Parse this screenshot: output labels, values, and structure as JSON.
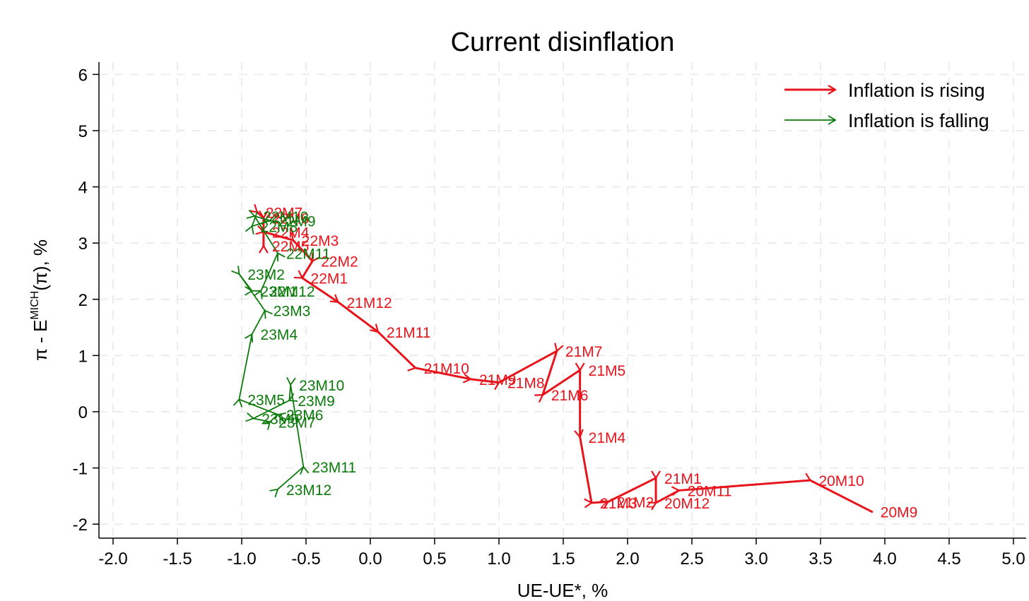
{
  "chart_data": {
    "type": "line",
    "title": "Current disinflation",
    "xlabel": "UE-UE*, %",
    "ylabel_parts": {
      "pre": "π - E",
      "sup": "MICH",
      "post": "(π), %"
    },
    "xlim": [
      -2.1,
      5.05
    ],
    "ylim": [
      -2.25,
      6.25
    ],
    "x_ticks": [
      -2.0,
      -1.5,
      -1.0,
      -0.5,
      0.0,
      0.5,
      1.0,
      1.5,
      2.0,
      2.5,
      3.0,
      3.5,
      4.0,
      4.5,
      5.0
    ],
    "x_tick_labels": [
      "-2.0",
      "-1.5",
      "-1.0",
      "-0.5",
      "0.0",
      "0.5",
      "1.0",
      "1.5",
      "2.0",
      "2.5",
      "3.0",
      "3.5",
      "4.0",
      "4.5",
      "5.0"
    ],
    "y_ticks": [
      -2,
      -1,
      0,
      1,
      2,
      3,
      4,
      5,
      6
    ],
    "y_tick_labels": [
      "-2",
      "-1",
      "0",
      "1",
      "2",
      "3",
      "4",
      "5",
      "6"
    ],
    "grid": true,
    "legend_position": "top-right",
    "legend": [
      {
        "label": "Inflation is rising",
        "color": "#e8141c"
      },
      {
        "label": "Inflation is falling",
        "color": "#0b7a0b"
      }
    ],
    "colors": {
      "rising": "#e8141c",
      "falling": "#0b7a0b"
    },
    "points": [
      {
        "label": "20M9",
        "x": 3.9,
        "y": -1.78
      },
      {
        "label": "20M10",
        "x": 3.42,
        "y": -1.22
      },
      {
        "label": "20M11",
        "x": 2.4,
        "y": -1.4
      },
      {
        "label": "20M12",
        "x": 2.22,
        "y": -1.62
      },
      {
        "label": "21M1",
        "x": 2.22,
        "y": -1.18
      },
      {
        "label": "21M2",
        "x": 1.85,
        "y": -1.6
      },
      {
        "label": "21M3",
        "x": 1.72,
        "y": -1.62
      },
      {
        "label": "21M4",
        "x": 1.63,
        "y": -0.45
      },
      {
        "label": "21M5",
        "x": 1.63,
        "y": 0.74
      },
      {
        "label": "21M6",
        "x": 1.34,
        "y": 0.3
      },
      {
        "label": "21M7",
        "x": 1.45,
        "y": 1.08
      },
      {
        "label": "21M8",
        "x": 1.0,
        "y": 0.52
      },
      {
        "label": "21M9",
        "x": 0.78,
        "y": 0.58
      },
      {
        "label": "21M10",
        "x": 0.35,
        "y": 0.78
      },
      {
        "label": "21M11",
        "x": 0.06,
        "y": 1.42
      },
      {
        "label": "21M12",
        "x": -0.25,
        "y": 1.95
      },
      {
        "label": "22M1",
        "x": -0.53,
        "y": 2.38
      },
      {
        "label": "22M2",
        "x": -0.45,
        "y": 2.68
      },
      {
        "label": "22M3",
        "x": -0.6,
        "y": 3.05
      },
      {
        "label": "22M4",
        "x": -0.83,
        "y": 3.2
      },
      {
        "label": "22M5",
        "x": -0.83,
        "y": 2.95
      },
      {
        "label": "22M6",
        "x": -0.83,
        "y": 3.45
      },
      {
        "label": "22M7",
        "x": -0.88,
        "y": 3.55
      },
      {
        "label": "22M8",
        "x": -0.92,
        "y": 3.3
      },
      {
        "label": "22M9",
        "x": -0.78,
        "y": 3.4
      },
      {
        "label": "22M10",
        "x": -0.9,
        "y": 3.48
      },
      {
        "label": "22M11",
        "x": -0.72,
        "y": 2.82
      },
      {
        "label": "22M12",
        "x": -0.85,
        "y": 2.15
      },
      {
        "label": "23M1",
        "x": -0.92,
        "y": 2.15
      },
      {
        "label": "23M2",
        "x": -1.02,
        "y": 2.45
      },
      {
        "label": "23M3",
        "x": -0.82,
        "y": 1.8
      },
      {
        "label": "23M4",
        "x": -0.92,
        "y": 1.38
      },
      {
        "label": "23M5",
        "x": -1.02,
        "y": 0.22
      },
      {
        "label": "23M6",
        "x": -0.72,
        "y": -0.05
      },
      {
        "label": "23M7",
        "x": -0.78,
        "y": -0.18
      },
      {
        "label": "23M8",
        "x": -0.91,
        "y": -0.12
      },
      {
        "label": "23M9",
        "x": -0.63,
        "y": 0.2
      },
      {
        "label": "23M10",
        "x": -0.62,
        "y": 0.48
      },
      {
        "label": "23M11",
        "x": -0.52,
        "y": -0.98
      },
      {
        "label": "23M12",
        "x": -0.72,
        "y": -1.38
      }
    ],
    "segments": [
      {
        "from": "20M9",
        "to": "20M10",
        "trend": "rising"
      },
      {
        "from": "20M10",
        "to": "20M11",
        "trend": "rising"
      },
      {
        "from": "20M11",
        "to": "20M12",
        "trend": "rising"
      },
      {
        "from": "20M12",
        "to": "21M1",
        "trend": "rising"
      },
      {
        "from": "21M1",
        "to": "21M2",
        "trend": "rising"
      },
      {
        "from": "21M2",
        "to": "21M3",
        "trend": "rising"
      },
      {
        "from": "21M3",
        "to": "21M4",
        "trend": "rising"
      },
      {
        "from": "21M4",
        "to": "21M5",
        "trend": "rising"
      },
      {
        "from": "21M5",
        "to": "21M6",
        "trend": "rising"
      },
      {
        "from": "21M6",
        "to": "21M7",
        "trend": "rising"
      },
      {
        "from": "21M7",
        "to": "21M8",
        "trend": "rising"
      },
      {
        "from": "21M8",
        "to": "21M9",
        "trend": "rising"
      },
      {
        "from": "21M9",
        "to": "21M10",
        "trend": "rising"
      },
      {
        "from": "21M10",
        "to": "21M11",
        "trend": "rising"
      },
      {
        "from": "21M11",
        "to": "21M12",
        "trend": "rising"
      },
      {
        "from": "21M12",
        "to": "22M1",
        "trend": "rising"
      },
      {
        "from": "22M1",
        "to": "22M2",
        "trend": "rising"
      },
      {
        "from": "22M2",
        "to": "22M3",
        "trend": "rising"
      },
      {
        "from": "22M3",
        "to": "22M4",
        "trend": "rising"
      },
      {
        "from": "22M4",
        "to": "22M5",
        "trend": "rising"
      },
      {
        "from": "22M5",
        "to": "22M6",
        "trend": "rising"
      },
      {
        "from": "22M6",
        "to": "22M7",
        "trend": "rising"
      },
      {
        "from": "22M7",
        "to": "22M8",
        "trend": "falling"
      },
      {
        "from": "22M8",
        "to": "22M9",
        "trend": "falling"
      },
      {
        "from": "22M9",
        "to": "22M10",
        "trend": "falling"
      },
      {
        "from": "22M10",
        "to": "22M11",
        "trend": "falling"
      },
      {
        "from": "22M11",
        "to": "22M12",
        "trend": "falling"
      },
      {
        "from": "22M12",
        "to": "23M1",
        "trend": "falling"
      },
      {
        "from": "23M1",
        "to": "23M2",
        "trend": "falling"
      },
      {
        "from": "23M2",
        "to": "23M3",
        "trend": "falling"
      },
      {
        "from": "23M3",
        "to": "23M4",
        "trend": "falling"
      },
      {
        "from": "23M4",
        "to": "23M5",
        "trend": "falling"
      },
      {
        "from": "23M5",
        "to": "23M6",
        "trend": "falling"
      },
      {
        "from": "23M6",
        "to": "23M7",
        "trend": "falling"
      },
      {
        "from": "23M7",
        "to": "23M8",
        "trend": "falling"
      },
      {
        "from": "23M8",
        "to": "23M9",
        "trend": "falling"
      },
      {
        "from": "23M9",
        "to": "23M10",
        "trend": "falling"
      },
      {
        "from": "23M10",
        "to": "23M11",
        "trend": "falling"
      },
      {
        "from": "23M11",
        "to": "23M12",
        "trend": "falling"
      }
    ]
  }
}
